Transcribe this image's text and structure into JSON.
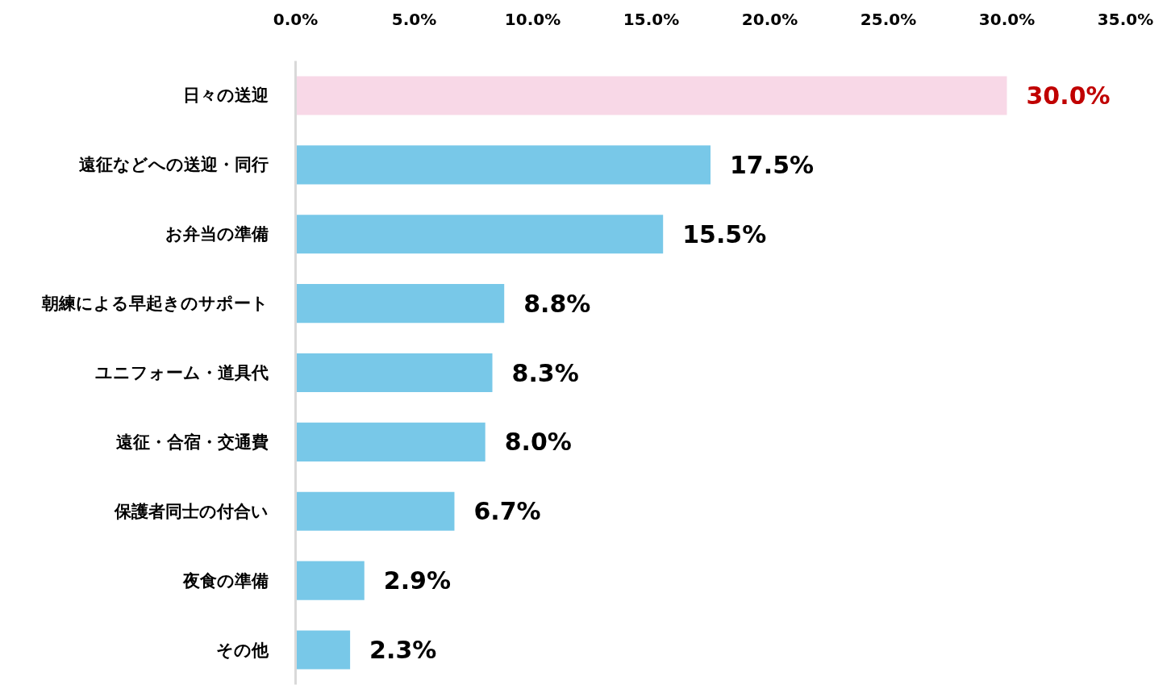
{
  "chart_data": {
    "type": "bar",
    "orientation": "horizontal",
    "categories": [
      "日々の送迎",
      "遠征などへの送迎・同行",
      "お弁当の準備",
      "朝練による早起きのサポート",
      "ユニフォーム・道具代",
      "遠征・合宿・交通費",
      "保護者同士の付合い",
      "夜食の準備",
      "その他"
    ],
    "values": [
      30.0,
      17.5,
      15.5,
      8.8,
      8.3,
      8.0,
      6.7,
      2.9,
      2.3
    ],
    "colors": [
      "#f8d8e7",
      "#78c8e8",
      "#78c8e8",
      "#78c8e8",
      "#78c8e8",
      "#78c8e8",
      "#78c8e8",
      "#78c8e8",
      "#78c8e8"
    ],
    "value_labels": [
      "30.0%",
      "17.5%",
      "15.5%",
      "8.8%",
      "8.3%",
      "8.0%",
      "6.7%",
      "2.9%",
      "2.3%"
    ],
    "xlim": [
      0,
      35
    ],
    "xticks": [
      {
        "value": 0,
        "label": "0.0%"
      },
      {
        "value": 5,
        "label": "5.0%"
      },
      {
        "value": 10,
        "label": "10.0%"
      },
      {
        "value": 15,
        "label": "15.0%"
      },
      {
        "value": 20,
        "label": "20.0%"
      },
      {
        "value": 25,
        "label": "25.0%"
      },
      {
        "value": 30,
        "label": "30.0%"
      },
      {
        "value": 35,
        "label": "35.0%"
      }
    ]
  }
}
